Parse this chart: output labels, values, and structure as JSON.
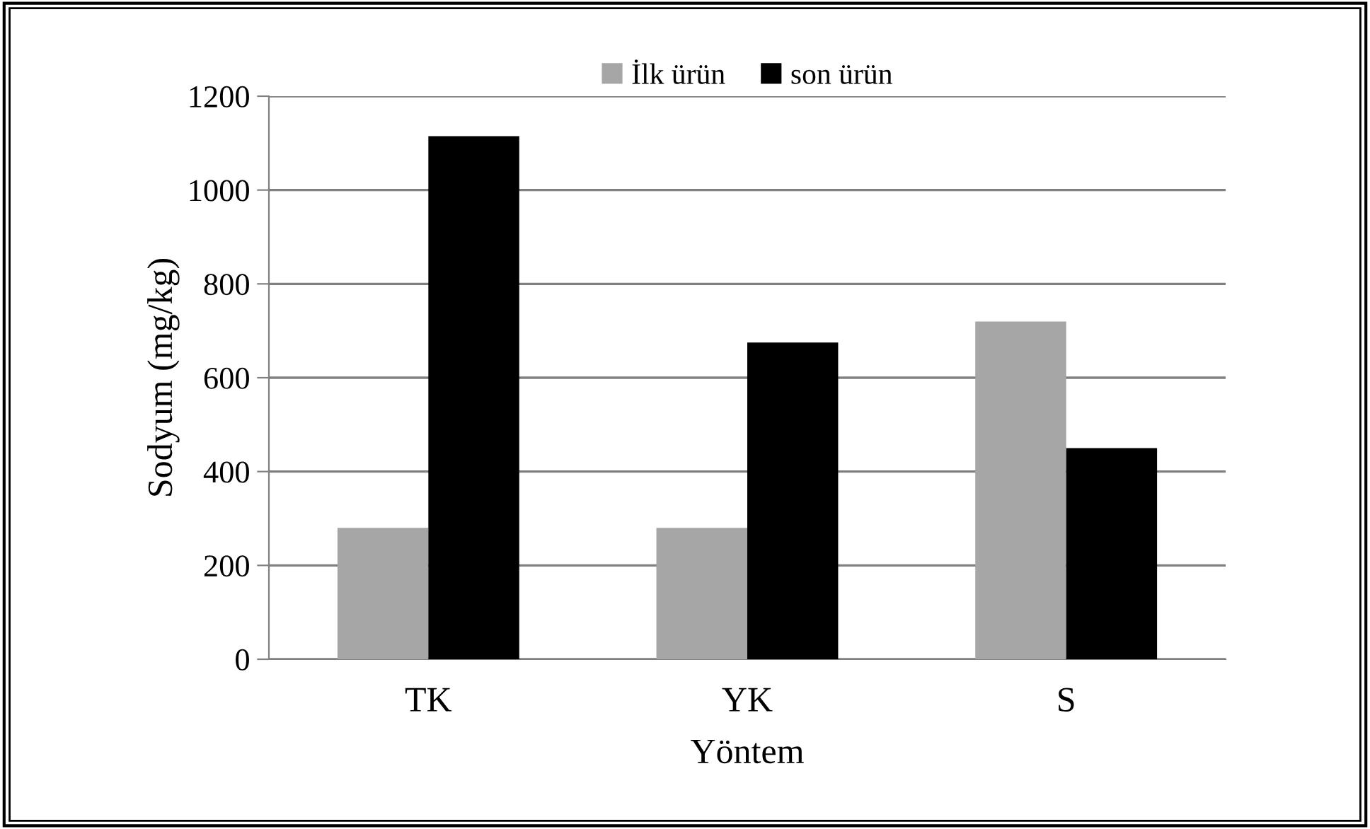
{
  "chart_data": {
    "type": "bar",
    "xlabel": "Yöntem",
    "ylabel": "Sodyum (mg/kg)",
    "categories": [
      "TK",
      "YK",
      "S"
    ],
    "series": [
      {
        "name": "İlk ürün",
        "color": "#a6a6a6",
        "values": [
          280,
          280,
          720
        ]
      },
      {
        "name": "son ürün",
        "color": "#000000",
        "values": [
          1115,
          675,
          450
        ]
      }
    ],
    "ylim": [
      0,
      1200
    ],
    "yticks": [
      0,
      200,
      400,
      600,
      800,
      1000,
      1200
    ],
    "grid": "y",
    "legend": "top"
  }
}
